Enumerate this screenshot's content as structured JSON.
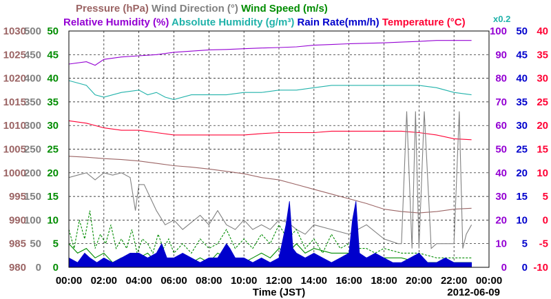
{
  "chart_data": {
    "type": "line",
    "header_lines": [
      [
        {
          "text": "Pressure (hPa)",
          "color": "#9b6464"
        },
        {
          "text": "Wind Direction (°)",
          "color": "#808080"
        },
        {
          "text": "Wind Speed (m/s)",
          "color": "#008c00"
        }
      ],
      [
        {
          "text": "Relative Humidity (%)",
          "color": "#9400d3"
        },
        {
          "text": "Absolute Humidity (g/m³)",
          "color": "#20b2aa"
        },
        {
          "text": "Rain Rate(mm/h)",
          "color": "#0000cc"
        },
        {
          "text": "Temperature (°C)",
          "color": "#ff0033"
        }
      ]
    ],
    "scale_note": "x0.2",
    "xlabel": "Time (JST)",
    "date_label": "2012-06-09",
    "x_ticks": [
      "00:00",
      "02:00",
      "04:00",
      "06:00",
      "08:00",
      "10:00",
      "12:00",
      "14:00",
      "16:00",
      "18:00",
      "20:00",
      "22:00",
      "00:00"
    ],
    "x_range_hours": [
      0,
      24
    ],
    "axes": {
      "pressure": {
        "color": "#9b6464",
        "range": [
          980,
          1030
        ],
        "ticks": [
          "1030",
          "1025",
          "1020",
          "1015",
          "1010",
          "1005",
          "1000",
          "995",
          "990",
          "985",
          "980"
        ]
      },
      "wind_direction": {
        "color": "#808080",
        "range": [
          0,
          500
        ],
        "ticks": [
          "500",
          "450",
          "400",
          "350",
          "300",
          "250",
          "200",
          "150",
          "100",
          "50",
          "0"
        ]
      },
      "wind_speed": {
        "color": "#008c00",
        "range": [
          0,
          50
        ],
        "ticks": [
          "50",
          "45",
          "40",
          "35",
          "30",
          "25",
          "20",
          "15",
          "10",
          "5",
          "0"
        ]
      },
      "humidity": {
        "color": "#9400d3",
        "range": [
          0,
          100
        ],
        "ticks": [
          "100",
          "90",
          "80",
          "70",
          "60",
          "50",
          "40",
          "30",
          "20",
          "10",
          "0"
        ]
      },
      "rain_rate": {
        "color": "#0000cc",
        "range": [
          0,
          50
        ],
        "ticks": [
          "50",
          "45",
          "40",
          "35",
          "30",
          "25",
          "20",
          "15",
          "10",
          "5",
          "0"
        ]
      },
      "temperature": {
        "color": "#ff0033",
        "range": [
          -10,
          40
        ],
        "ticks": [
          "40",
          "35",
          "30",
          "25",
          "20",
          "15",
          "10",
          "5",
          "0",
          "-5",
          "-10"
        ]
      }
    },
    "series": [
      {
        "key": "relative_humidity",
        "axis": "humidity",
        "color": "#9400d3",
        "x": [
          0,
          1,
          1.5,
          2,
          3,
          4,
          5,
          6,
          7,
          8,
          9,
          10,
          11,
          12,
          13,
          14,
          15,
          16,
          17,
          18,
          19,
          20,
          21,
          22,
          23
        ],
        "y": [
          86,
          87,
          85.5,
          88,
          89,
          89.5,
          90,
          91,
          91.5,
          92,
          92.2,
          92.5,
          92.8,
          93,
          93.3,
          94,
          94.3,
          94.6,
          94.8,
          95,
          95.3,
          95.6,
          96,
          96,
          96
        ]
      },
      {
        "key": "absolute_humidity",
        "axis": "humidity",
        "color": "#20b2aa",
        "x": [
          0,
          1,
          1.5,
          2,
          3,
          4,
          4.5,
          5,
          5.5,
          6,
          7,
          8,
          9,
          10,
          11,
          12,
          13,
          14,
          15,
          16,
          17,
          18,
          19,
          20,
          21,
          22,
          23
        ],
        "y": [
          79,
          77,
          73,
          72,
          74,
          75,
          73,
          74,
          72,
          71,
          73,
          73,
          73,
          74,
          74,
          75,
          75,
          76,
          77,
          77,
          77,
          77,
          77,
          77,
          76,
          74,
          73
        ]
      },
      {
        "key": "temperature",
        "axis": "temperature",
        "color": "#ff0033",
        "x": [
          0,
          1,
          2,
          3,
          4,
          5,
          6,
          7,
          8,
          9,
          10,
          11,
          12,
          13,
          14,
          15,
          16,
          17,
          18,
          19,
          20,
          21,
          22,
          23
        ],
        "y": [
          21,
          20.5,
          19.5,
          19,
          19,
          18.5,
          18,
          18,
          18,
          18,
          18,
          18.3,
          18.5,
          18.5,
          18.5,
          18.8,
          18.8,
          18.8,
          18.8,
          18.8,
          18.5,
          18,
          17.2,
          17
        ]
      },
      {
        "key": "pressure",
        "axis": "pressure",
        "color": "#9b6464",
        "x": [
          0,
          1,
          2,
          3,
          4,
          5,
          6,
          7,
          8,
          9,
          10,
          11,
          12,
          13,
          14,
          15,
          16,
          17,
          18,
          19,
          20,
          21,
          22,
          23
        ],
        "y": [
          1003.5,
          1003.3,
          1003,
          1002.8,
          1002.5,
          1002,
          1001.5,
          1001.2,
          1000.8,
          1000.3,
          999.8,
          999,
          998.5,
          997.5,
          996.5,
          995.5,
          994.5,
          993.5,
          992.3,
          991.8,
          991.5,
          991.8,
          992.3,
          992.5
        ]
      },
      {
        "key": "wind_direction",
        "axis": "wind_direction",
        "color": "#808080",
        "x": [
          0,
          0.5,
          1,
          1.5,
          2,
          2.5,
          3,
          3.5,
          3.8,
          4,
          4.3,
          5,
          5.5,
          6,
          6.5,
          7,
          7.5,
          8,
          8.5,
          9,
          9.5,
          10,
          10.5,
          11,
          11.5,
          12,
          12.5,
          13,
          13.5,
          14,
          15,
          16,
          17,
          18,
          18.8,
          19,
          19.3,
          19.6,
          19.8,
          20,
          20.3,
          20.7,
          21,
          21.5,
          22,
          22.3,
          22.5,
          22.7,
          23
        ],
        "y": [
          190,
          195,
          200,
          185,
          200,
          195,
          200,
          190,
          120,
          175,
          175,
          120,
          90,
          100,
          80,
          95,
          110,
          90,
          120,
          90,
          80,
          100,
          80,
          90,
          80,
          100,
          95,
          80,
          70,
          90,
          80,
          70,
          90,
          60,
          50,
          50,
          330,
          40,
          330,
          40,
          330,
          40,
          50,
          50,
          50,
          330,
          40,
          70,
          90
        ]
      },
      {
        "key": "wind_speed",
        "axis": "wind_speed",
        "color": "#008c00",
        "x": [
          0,
          0.5,
          1,
          1.5,
          2,
          2.5,
          3,
          3.5,
          4,
          4.5,
          5,
          5.5,
          6,
          6.5,
          7,
          7.5,
          8,
          8.5,
          9,
          9.5,
          10,
          10.5,
          11,
          11.5,
          12,
          12.5,
          13,
          13.5,
          14,
          15,
          16,
          17,
          18,
          19,
          20,
          21,
          22,
          23
        ],
        "y": [
          5,
          3,
          4,
          2,
          3,
          1,
          2,
          1,
          2,
          3,
          1,
          2,
          1,
          2,
          1,
          2,
          1,
          3,
          2,
          2,
          1,
          2,
          3,
          2,
          4,
          3,
          5,
          3,
          4,
          3,
          3,
          2,
          2,
          2,
          1,
          1,
          1,
          1
        ]
      },
      {
        "key": "wind_speed_gust",
        "axis": "wind_speed",
        "color": "#008c00",
        "dashed": true,
        "x": [
          0,
          0.3,
          0.6,
          0.9,
          1.2,
          1.5,
          1.8,
          2.1,
          2.4,
          2.7,
          3,
          3.3,
          3.6,
          3.9,
          4.2,
          4.5,
          4.8,
          5.1,
          5.4,
          5.7,
          6,
          6.5,
          7,
          7.5,
          8,
          8.5,
          9,
          9.5,
          10,
          10.5,
          11,
          11.5,
          12,
          12.5,
          13,
          13.5,
          14,
          14.5,
          15,
          15.5,
          16,
          16.5,
          17,
          17.5,
          18,
          19,
          20,
          21,
          22,
          23
        ],
        "y": [
          8,
          4,
          10,
          6,
          12,
          4,
          7,
          5,
          9,
          4,
          6,
          4,
          8,
          3,
          6,
          5,
          3,
          7,
          4,
          6,
          3,
          5,
          3,
          6,
          4,
          5,
          8,
          4,
          6,
          4,
          7,
          5,
          9,
          6,
          8,
          4,
          6,
          3,
          7,
          4,
          5,
          4,
          4,
          3,
          4,
          3,
          3,
          2,
          2,
          2
        ]
      },
      {
        "key": "rain_rate",
        "axis": "rain_rate",
        "color": "#0000cc",
        "filled": true,
        "x": [
          0,
          0.5,
          0.9,
          1.2,
          1.6,
          2,
          2.5,
          3,
          3.5,
          4,
          4.5,
          5,
          5.3,
          5.6,
          6,
          6.5,
          7,
          7.5,
          8,
          8.5,
          9,
          9.2,
          9.5,
          10,
          10.5,
          11,
          11.5,
          12,
          12.4,
          12.6,
          12.8,
          13,
          13.5,
          14,
          14.5,
          15,
          15.5,
          16,
          16.2,
          16.4,
          16.6,
          17,
          17.5,
          18,
          18.5,
          19,
          19.5,
          20,
          20.5,
          21,
          21.5,
          22,
          22.5,
          23
        ],
        "y": [
          2,
          1,
          3,
          2,
          1,
          2,
          1,
          2,
          3,
          3,
          2,
          3,
          5,
          2,
          2,
          3,
          2,
          1,
          2,
          2,
          5,
          4,
          2,
          2,
          1,
          2,
          1,
          2,
          9,
          14,
          4,
          3,
          2,
          3,
          2,
          1,
          2,
          3,
          10,
          14,
          3,
          2,
          3,
          2,
          1,
          1,
          2,
          3,
          1,
          1,
          2,
          1,
          1,
          1
        ]
      }
    ]
  }
}
